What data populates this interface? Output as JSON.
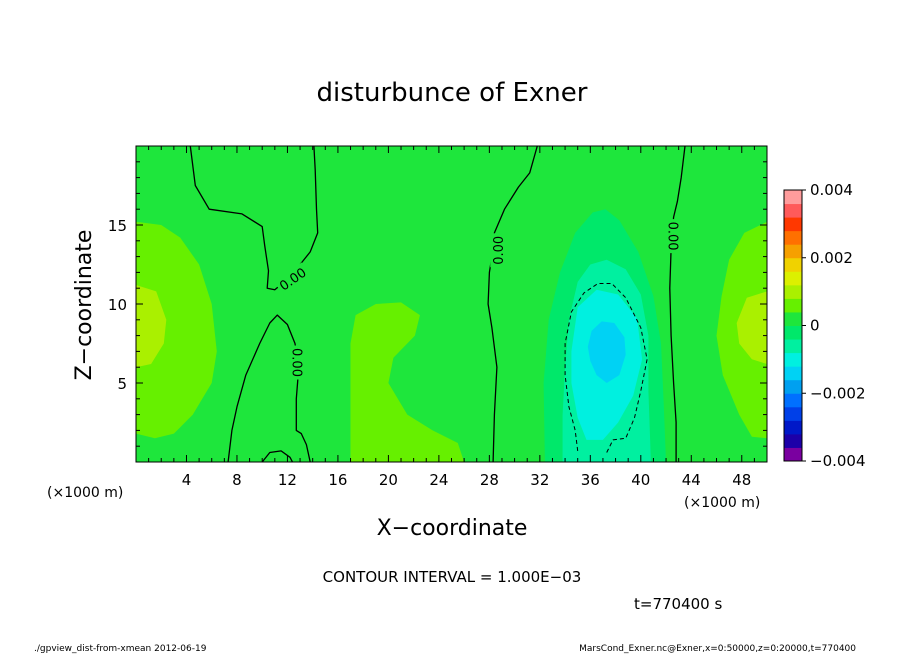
{
  "chart_data": {
    "type": "heatmap",
    "title": "disturbunce of Exner",
    "xlabel": "X−coordinate",
    "ylabel": "Z−coordinate",
    "x_unit_left": "(×1000 m)",
    "x_unit_right": "(×1000 m)",
    "xlim": [
      0,
      50
    ],
    "ylim": [
      0,
      20
    ],
    "x_ticks": [
      "4",
      "8",
      "12",
      "16",
      "20",
      "24",
      "28",
      "32",
      "36",
      "40",
      "44",
      "48"
    ],
    "x_tick_values": [
      4,
      8,
      12,
      16,
      20,
      24,
      28,
      32,
      36,
      40,
      44,
      48
    ],
    "y_ticks": [
      "5",
      "10",
      "15"
    ],
    "y_tick_values": [
      5,
      10,
      15
    ],
    "colorbar": {
      "labels": [
        "0.004",
        "0.002",
        "0",
        "−0.002",
        "−0.004"
      ],
      "label_values": [
        0.004,
        0.002,
        0,
        -0.002,
        -0.004
      ],
      "range": [
        -0.004,
        0.004
      ],
      "levels": [
        {
          "lo": -0.004,
          "hi": -0.0036,
          "color": "#7a00a0"
        },
        {
          "lo": -0.0036,
          "hi": -0.0032,
          "color": "#1c00a8"
        },
        {
          "lo": -0.0032,
          "hi": -0.0028,
          "color": "#0018c8"
        },
        {
          "lo": -0.0028,
          "hi": -0.0024,
          "color": "#0040e8"
        },
        {
          "lo": -0.0024,
          "hi": -0.002,
          "color": "#0070ff"
        },
        {
          "lo": -0.002,
          "hi": -0.0016,
          "color": "#00a0f0"
        },
        {
          "lo": -0.0016,
          "hi": -0.0012,
          "color": "#00d2f4"
        },
        {
          "lo": -0.0012,
          "hi": -0.0008,
          "color": "#00f0e0"
        },
        {
          "lo": -0.0008,
          "hi": -0.0004,
          "color": "#00f0a0"
        },
        {
          "lo": -0.0004,
          "hi": 0.0,
          "color": "#00e86a"
        },
        {
          "lo": 0.0,
          "hi": 0.0004,
          "color": "#1ee63c"
        },
        {
          "lo": 0.0004,
          "hi": 0.0008,
          "color": "#66f000"
        },
        {
          "lo": 0.0008,
          "hi": 0.0012,
          "color": "#aaf000"
        },
        {
          "lo": 0.0012,
          "hi": 0.0016,
          "color": "#dcf000"
        },
        {
          "lo": 0.0016,
          "hi": 0.002,
          "color": "#f0d200"
        },
        {
          "lo": 0.002,
          "hi": 0.0024,
          "color": "#f6a000"
        },
        {
          "lo": 0.0024,
          "hi": 0.0028,
          "color": "#ff7000"
        },
        {
          "lo": 0.0028,
          "hi": 0.0032,
          "color": "#ff3800"
        },
        {
          "lo": 0.0032,
          "hi": 0.0036,
          "color": "#ff5a5a"
        },
        {
          "lo": 0.0036,
          "hi": 0.004,
          "color": "#ff9c9c"
        }
      ]
    },
    "regions": [
      {
        "name": "background",
        "value": 0.0002,
        "points": [
          [
            0,
            0
          ],
          [
            50,
            0
          ],
          [
            50,
            20
          ],
          [
            0,
            20
          ]
        ]
      },
      {
        "name": "left-positive-band",
        "value": 0.0006,
        "points": [
          [
            0,
            1.8
          ],
          [
            1.5,
            1.5
          ],
          [
            3,
            1.8
          ],
          [
            4.5,
            3
          ],
          [
            6,
            5
          ],
          [
            6.4,
            7
          ],
          [
            6,
            10
          ],
          [
            5,
            12.5
          ],
          [
            3.5,
            14.2
          ],
          [
            2,
            15
          ],
          [
            0,
            15.2
          ]
        ]
      },
      {
        "name": "left-core",
        "value": 0.001,
        "points": [
          [
            0,
            6
          ],
          [
            1.2,
            6.2
          ],
          [
            2.2,
            7.5
          ],
          [
            2.4,
            9
          ],
          [
            1.6,
            10.8
          ],
          [
            0,
            11.2
          ]
        ]
      },
      {
        "name": "central-bump",
        "value": 0.0006,
        "points": [
          [
            17,
            5
          ],
          [
            17,
            7.5
          ],
          [
            17.4,
            9.3
          ],
          [
            19,
            10
          ],
          [
            21,
            10.1
          ],
          [
            22.5,
            9.3
          ],
          [
            22.1,
            8
          ],
          [
            20.4,
            6.6
          ],
          [
            20,
            5
          ],
          [
            21.5,
            3
          ],
          [
            23.5,
            2
          ],
          [
            25.5,
            1.2
          ],
          [
            26,
            0
          ],
          [
            17,
            0
          ]
        ]
      },
      {
        "name": "right-positive-band",
        "value": 0.0006,
        "points": [
          [
            50,
            1.5
          ],
          [
            48.8,
            1.6
          ],
          [
            47.8,
            3
          ],
          [
            46.5,
            5.5
          ],
          [
            46,
            8
          ],
          [
            46.4,
            10.5
          ],
          [
            47,
            12.8
          ],
          [
            48.2,
            14.5
          ],
          [
            50,
            15.2
          ]
        ]
      },
      {
        "name": "right-core",
        "value": 0.001,
        "points": [
          [
            50,
            6.2
          ],
          [
            48.8,
            6.5
          ],
          [
            47.8,
            7.5
          ],
          [
            47.6,
            8.8
          ],
          [
            48.4,
            10.4
          ],
          [
            50,
            10.8
          ]
        ]
      },
      {
        "name": "neg-outer",
        "value": -0.0002,
        "points": [
          [
            32.4,
            0
          ],
          [
            32.3,
            5
          ],
          [
            32.7,
            9
          ],
          [
            33.6,
            12
          ],
          [
            34.8,
            14.5
          ],
          [
            36.2,
            15.8
          ],
          [
            37.2,
            16
          ],
          [
            38.3,
            15.3
          ],
          [
            39.8,
            13.3
          ],
          [
            41,
            10.5
          ],
          [
            41.6,
            7.5
          ],
          [
            41.8,
            4
          ],
          [
            42,
            0
          ]
        ]
      },
      {
        "name": "neg-mid",
        "value": -0.0006,
        "points": [
          [
            33.8,
            0
          ],
          [
            33.8,
            3
          ],
          [
            34,
            6
          ],
          [
            34.3,
            9
          ],
          [
            35,
            11.4
          ],
          [
            36,
            12.5
          ],
          [
            37.3,
            12.8
          ],
          [
            38.8,
            12.2
          ],
          [
            40,
            10.6
          ],
          [
            40.6,
            8
          ],
          [
            40.6,
            4.5
          ],
          [
            40.8,
            0
          ]
        ]
      },
      {
        "name": "neg-inner",
        "value": -0.001,
        "points": [
          [
            35.7,
            1.4
          ],
          [
            35,
            2.8
          ],
          [
            34.5,
            5
          ],
          [
            34.5,
            7
          ],
          [
            35,
            9.8
          ],
          [
            36.5,
            10.9
          ],
          [
            38.2,
            10.6
          ],
          [
            39.7,
            9.1
          ],
          [
            40.1,
            6.5
          ],
          [
            39.4,
            4.2
          ],
          [
            38.2,
            2.5
          ],
          [
            37,
            1.4
          ]
        ]
      },
      {
        "name": "neg-core",
        "value": -0.0016,
        "points": [
          [
            36,
            6.4
          ],
          [
            35.8,
            7.3
          ],
          [
            36.1,
            8.3
          ],
          [
            36.9,
            8.9
          ],
          [
            37.9,
            8.8
          ],
          [
            38.7,
            7.9
          ],
          [
            38.8,
            6.8
          ],
          [
            38.3,
            5.5
          ],
          [
            37.3,
            5
          ],
          [
            36.5,
            5.5
          ]
        ]
      }
    ],
    "contours": [
      {
        "name": "zero-contour-upper-left",
        "style": "solid",
        "points": [
          [
            4.3,
            20
          ],
          [
            4.7,
            17.5
          ],
          [
            5.8,
            16
          ],
          [
            8.4,
            15.7
          ],
          [
            10,
            14.9
          ],
          [
            10.2,
            13.7
          ],
          [
            10.5,
            12.1
          ],
          [
            10.4,
            11
          ],
          [
            11,
            10.9
          ],
          [
            12.2,
            11.7
          ],
          [
            13,
            12.5
          ],
          [
            13.8,
            13.3
          ],
          [
            14.4,
            14.5
          ],
          [
            14.3,
            16
          ],
          [
            14.2,
            18.5
          ],
          [
            14.1,
            20
          ]
        ]
      },
      {
        "name": "zero-contour-lower-left",
        "style": "solid",
        "points": [
          [
            7.3,
            0
          ],
          [
            7.6,
            2
          ],
          [
            8,
            3.5
          ],
          [
            8.7,
            5.5
          ],
          [
            9.8,
            7.5
          ],
          [
            10.6,
            8.8
          ],
          [
            11.2,
            9.3
          ],
          [
            12,
            8.7
          ],
          [
            12.6,
            7.5
          ],
          [
            12.9,
            6
          ],
          [
            12.7,
            4
          ],
          [
            12.7,
            2
          ],
          [
            13.1,
            1.8
          ],
          [
            13.5,
            1.1
          ],
          [
            13.8,
            0
          ]
        ]
      },
      {
        "name": "zero-contour-inner-bump",
        "style": "solid",
        "points": [
          [
            10,
            0
          ],
          [
            10.6,
            0.6
          ],
          [
            11.5,
            0.7
          ],
          [
            12.2,
            0.3
          ],
          [
            12.4,
            0
          ]
        ]
      },
      {
        "name": "zero-contour-mid",
        "style": "solid",
        "points": [
          [
            28.3,
            0
          ],
          [
            28.4,
            3
          ],
          [
            28.6,
            6
          ],
          [
            28.2,
            8.5
          ],
          [
            27.9,
            10
          ],
          [
            28,
            12
          ],
          [
            28.2,
            13
          ],
          [
            28.4,
            14.5
          ],
          [
            29.2,
            16
          ],
          [
            30.3,
            17.4
          ],
          [
            31.2,
            18.3
          ],
          [
            31.8,
            20
          ]
        ]
      },
      {
        "name": "zero-contour-right",
        "style": "solid",
        "points": [
          [
            42.8,
            0
          ],
          [
            42.8,
            2.5
          ],
          [
            42.6,
            5
          ],
          [
            42.4,
            8
          ],
          [
            42.3,
            11
          ],
          [
            42.4,
            13.5
          ],
          [
            42.6,
            15.5
          ],
          [
            42.9,
            16.5
          ],
          [
            43.2,
            18
          ],
          [
            43.5,
            20
          ]
        ]
      },
      {
        "name": "minus-0.001-contour",
        "style": "dashed",
        "points": [
          [
            35,
            0.7
          ],
          [
            34.8,
            2
          ],
          [
            34.3,
            3.5
          ],
          [
            34,
            5.5
          ],
          [
            34,
            7.5
          ],
          [
            34.5,
            9.5
          ],
          [
            35.5,
            10.7
          ],
          [
            36.6,
            11.3
          ],
          [
            37.7,
            11.3
          ],
          [
            38.8,
            10.4
          ],
          [
            40,
            8.5
          ],
          [
            40.5,
            6.5
          ],
          [
            40,
            4.5
          ],
          [
            39.5,
            2.8
          ],
          [
            38.8,
            1.5
          ],
          [
            37.8,
            1.4
          ],
          [
            37.3,
            0.6
          ]
        ]
      }
    ],
    "contour_labels": [
      {
        "text": "0.00",
        "x": 12.4,
        "y": 11.6,
        "angle": -35
      },
      {
        "text": "0.00",
        "x": 12.8,
        "y": 6.3,
        "angle": 90
      },
      {
        "text": "0.00",
        "x": 28.7,
        "y": 13.4,
        "angle": -90
      },
      {
        "text": "0.00",
        "x": 42.6,
        "y": 14.3,
        "angle": 90
      }
    ]
  },
  "footer": {
    "contour_interval": "CONTOUR INTERVAL = 1.000E−03",
    "time": "t=770400  s",
    "script_name": "./gpview_dist-from-xmean  2012-06-19",
    "source": "MarsCond_Exner.nc@Exner,x=0:50000,z=0:20000,t=770400"
  }
}
